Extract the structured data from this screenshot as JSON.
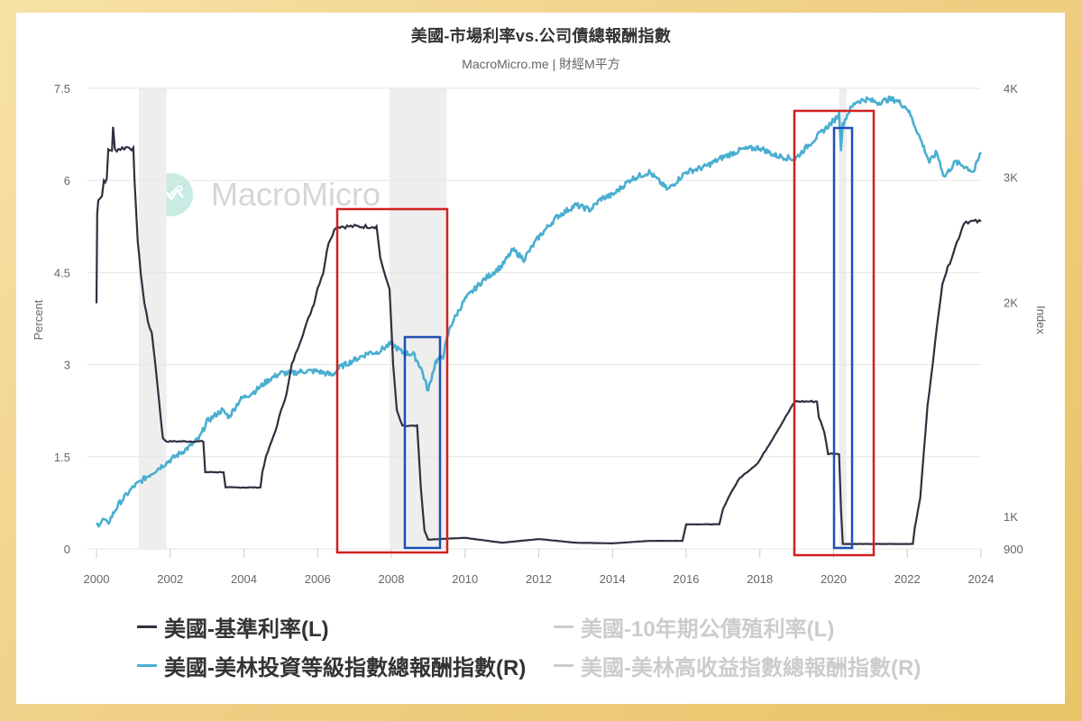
{
  "title": "美國-市場利率vs.公司債總報酬指數",
  "subtitle": "MacroMicro.me | 財經M平方",
  "watermark": {
    "text": "MacroMicro",
    "icon": "chart-logo-icon"
  },
  "colors": {
    "frame_light": "#f7e2a6",
    "frame_dark": "#e9c366",
    "fed_funds": "#2f3040",
    "ig_index": "#4aaed0",
    "hidden_series": "#cccccc",
    "highlight_red": "#d02020",
    "highlight_blue": "#1f4fb5",
    "recession_band": "#eeeeee",
    "grid": "#e6e6e6"
  },
  "legend": [
    {
      "label": "美國-基準利率(L)",
      "color": "#2f3040",
      "visible": true
    },
    {
      "label": "美國-10年期公債殖利率(L)",
      "color": "#cccccc",
      "visible": false
    },
    {
      "label": "美國-美林投資等級指數總報酬指數(R)",
      "color": "#4aaed0",
      "visible": true
    },
    {
      "label": "美國-美林高收益指數總報酬指數(R)",
      "color": "#cccccc",
      "visible": false
    }
  ],
  "chart_data": {
    "type": "line",
    "title": "美國-市場利率vs.公司債總報酬指數",
    "subtitle": "MacroMicro.me | 財經M平方",
    "xlabel": "",
    "ylabel_left": "Percent",
    "ylabel_right": "Index",
    "x_ticks": [
      "2000",
      "2002",
      "2004",
      "2006",
      "2008",
      "2010",
      "2012",
      "2014",
      "2016",
      "2018",
      "2020",
      "2022",
      "2024"
    ],
    "xlim": [
      2000,
      2024
    ],
    "y_left_ticks": [
      "0",
      "1.5",
      "3",
      "4.5",
      "6",
      "7.5"
    ],
    "y_left_lim": [
      0,
      7.5
    ],
    "y_right_ticks": [
      "900",
      "1K",
      "2K",
      "3K",
      "4K"
    ],
    "y_right_scale": "log",
    "y_right_lim": [
      900,
      4000
    ],
    "grid": true,
    "legend_position": "bottom",
    "recession_bands": [
      [
        2001.15,
        2001.9
      ],
      [
        2007.95,
        2009.5
      ],
      [
        2020.15,
        2020.35
      ]
    ],
    "highlight_boxes": [
      {
        "color": "red",
        "x": [
          2006.6,
          2009.6
        ],
        "y_left": [
          -0.05,
          5.5
        ]
      },
      {
        "color": "blue",
        "x": [
          2008.4,
          2009.4
        ],
        "y_left": [
          0,
          3.45
        ]
      },
      {
        "color": "red",
        "x": [
          2018.95,
          2021.1
        ],
        "y_left": [
          -0.1,
          7.2
        ]
      },
      {
        "color": "blue",
        "x": [
          2020.05,
          2020.55
        ],
        "y_left": [
          0,
          6.9
        ]
      }
    ],
    "series": [
      {
        "name": "美國-基準利率(L)",
        "axis": "left",
        "x": [
          2000.0,
          2000.02,
          2000.05,
          2000.15,
          2000.2,
          2000.28,
          2000.32,
          2000.35,
          2000.42,
          2000.45,
          2000.5,
          2000.9,
          2001.0,
          2001.03,
          2001.08,
          2001.12,
          2001.2,
          2001.3,
          2001.4,
          2001.5,
          2001.6,
          2001.7,
          2001.8,
          2001.9,
          2001.95,
          2002.9,
          2002.95,
          2003.45,
          2003.5,
          2004.45,
          2004.5,
          2004.6,
          2004.75,
          2004.9,
          2005.0,
          2005.15,
          2005.3,
          2005.45,
          2005.6,
          2005.75,
          2005.9,
          2006.0,
          2006.15,
          2006.3,
          2006.5,
          2007.6,
          2007.7,
          2007.8,
          2007.95,
          2008.05,
          2008.15,
          2008.3,
          2008.7,
          2008.8,
          2008.9,
          2009.0,
          2010.0,
          2011.0,
          2012.0,
          2013.0,
          2014.0,
          2015.0,
          2015.9,
          2016.0,
          2016.9,
          2017.0,
          2017.2,
          2017.45,
          2017.95,
          2018.2,
          2018.45,
          2018.7,
          2018.95,
          2019.55,
          2019.6,
          2019.75,
          2019.85,
          2020.15,
          2020.2,
          2020.25,
          2021.0,
          2022.15,
          2022.2,
          2022.35,
          2022.45,
          2022.55,
          2022.7,
          2022.85,
          2022.95,
          2023.1,
          2023.25,
          2023.55,
          2024.0
        ],
        "values": [
          4.0,
          5.45,
          5.7,
          5.75,
          6.0,
          6.0,
          6.5,
          6.5,
          6.5,
          6.85,
          6.5,
          6.55,
          6.5,
          6.0,
          5.5,
          5.0,
          4.5,
          4.0,
          3.7,
          3.5,
          3.0,
          2.4,
          1.8,
          1.75,
          1.75,
          1.75,
          1.25,
          1.25,
          1.0,
          1.0,
          1.25,
          1.5,
          1.75,
          2.0,
          2.25,
          2.5,
          3.0,
          3.25,
          3.5,
          3.75,
          4.0,
          4.25,
          4.5,
          5.0,
          5.25,
          5.25,
          4.75,
          4.5,
          4.25,
          3.0,
          2.25,
          2.0,
          2.0,
          1.0,
          0.3,
          0.15,
          0.18,
          0.1,
          0.16,
          0.1,
          0.09,
          0.13,
          0.13,
          0.4,
          0.4,
          0.65,
          0.9,
          1.15,
          1.4,
          1.65,
          1.9,
          2.15,
          2.4,
          2.4,
          2.15,
          1.9,
          1.55,
          1.55,
          0.65,
          0.08,
          0.08,
          0.08,
          0.33,
          0.83,
          1.58,
          2.33,
          3.08,
          3.83,
          4.33,
          4.58,
          4.83,
          5.33,
          5.33
        ]
      },
      {
        "name": "美國-美林投資等級指數總報酬指數(R)",
        "axis": "right",
        "x": [
          2000.0,
          2000.2,
          2000.3,
          2000.6,
          2001.0,
          2001.5,
          2002.0,
          2002.5,
          2002.8,
          2003.0,
          2003.4,
          2003.6,
          2003.9,
          2004.3,
          2004.7,
          2005.0,
          2005.3,
          2005.6,
          2006.0,
          2006.4,
          2006.6,
          2007.0,
          2007.4,
          2007.6,
          2008.0,
          2008.3,
          2008.6,
          2008.8,
          2009.0,
          2009.2,
          2009.4,
          2009.6,
          2010.0,
          2010.5,
          2011.0,
          2011.3,
          2011.6,
          2012.0,
          2012.5,
          2013.0,
          2013.4,
          2013.7,
          2014.0,
          2014.5,
          2015.0,
          2015.5,
          2016.0,
          2016.5,
          2017.0,
          2017.5,
          2018.0,
          2018.4,
          2018.95,
          2019.5,
          2020.0,
          2020.15,
          2020.2,
          2020.25,
          2020.4,
          2020.6,
          2020.9,
          2021.2,
          2021.5,
          2021.7,
          2022.0,
          2022.3,
          2022.6,
          2022.8,
          2023.0,
          2023.3,
          2023.6,
          2023.8,
          2024.0
        ],
        "values": [
          970,
          990,
          975,
          1040,
          1100,
          1150,
          1200,
          1250,
          1290,
          1360,
          1410,
          1380,
          1460,
          1500,
          1560,
          1590,
          1590,
          1600,
          1600,
          1580,
          1620,
          1660,
          1700,
          1700,
          1750,
          1700,
          1690,
          1620,
          1500,
          1650,
          1680,
          1850,
          2020,
          2150,
          2250,
          2370,
          2300,
          2470,
          2640,
          2740,
          2700,
          2800,
          2830,
          2980,
          3050,
          2880,
          3050,
          3100,
          3200,
          3280,
          3300,
          3220,
          3180,
          3400,
          3600,
          3680,
          3300,
          3550,
          3700,
          3830,
          3860,
          3820,
          3860,
          3850,
          3750,
          3450,
          3150,
          3250,
          3000,
          3150,
          3100,
          3050,
          3250
        ]
      }
    ]
  }
}
